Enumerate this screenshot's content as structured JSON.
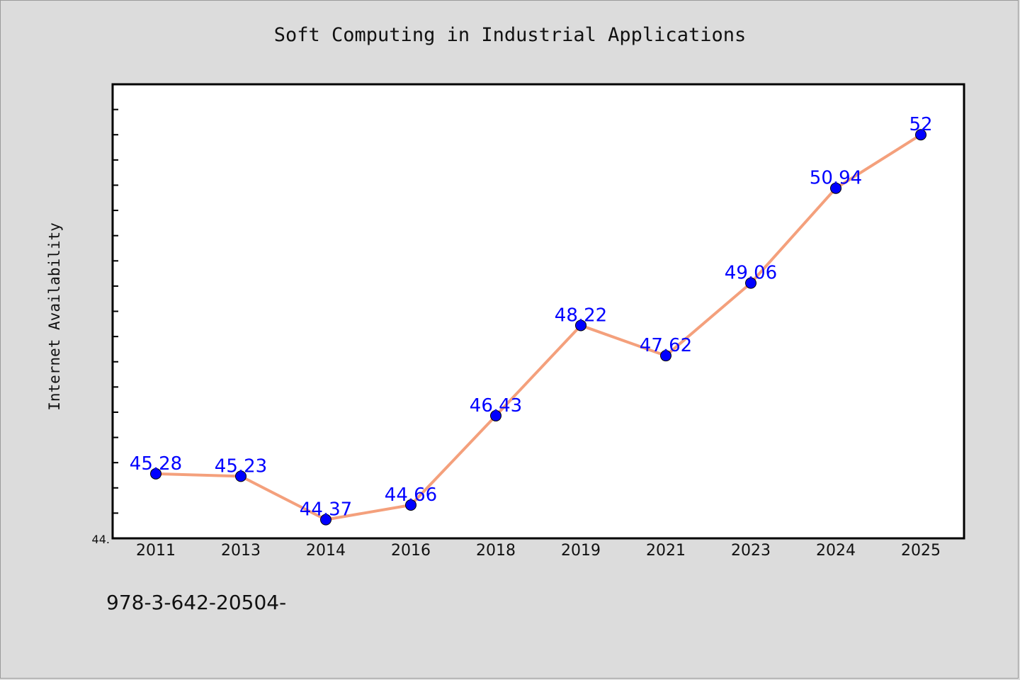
{
  "chart_data": {
    "type": "line",
    "title": "Soft Computing in Industrial Applications",
    "xlabel": "",
    "ylabel": "Internet Availability",
    "categories": [
      "2011",
      "2013",
      "2014",
      "2016",
      "2018",
      "2019",
      "2021",
      "2023",
      "2024",
      "2025"
    ],
    "series": [
      {
        "values": [
          45.28,
          45.23,
          44.37,
          44.66,
          46.43,
          48.22,
          47.62,
          49.06,
          50.94,
          52
        ],
        "labels": [
          "45.28",
          "45.23",
          "44.37",
          "44.66",
          "46.43",
          "48.22",
          "47.62",
          "49.06",
          "50.94",
          "52"
        ],
        "color": "#f4a07c",
        "marker_color": "#0000ff"
      }
    ],
    "ylim": [
      44.0,
      53.0
    ],
    "y_tick_labels_visible": [
      "44."
    ],
    "grid": false,
    "legend": "none"
  },
  "footer_text": "978-3-642-20504-"
}
